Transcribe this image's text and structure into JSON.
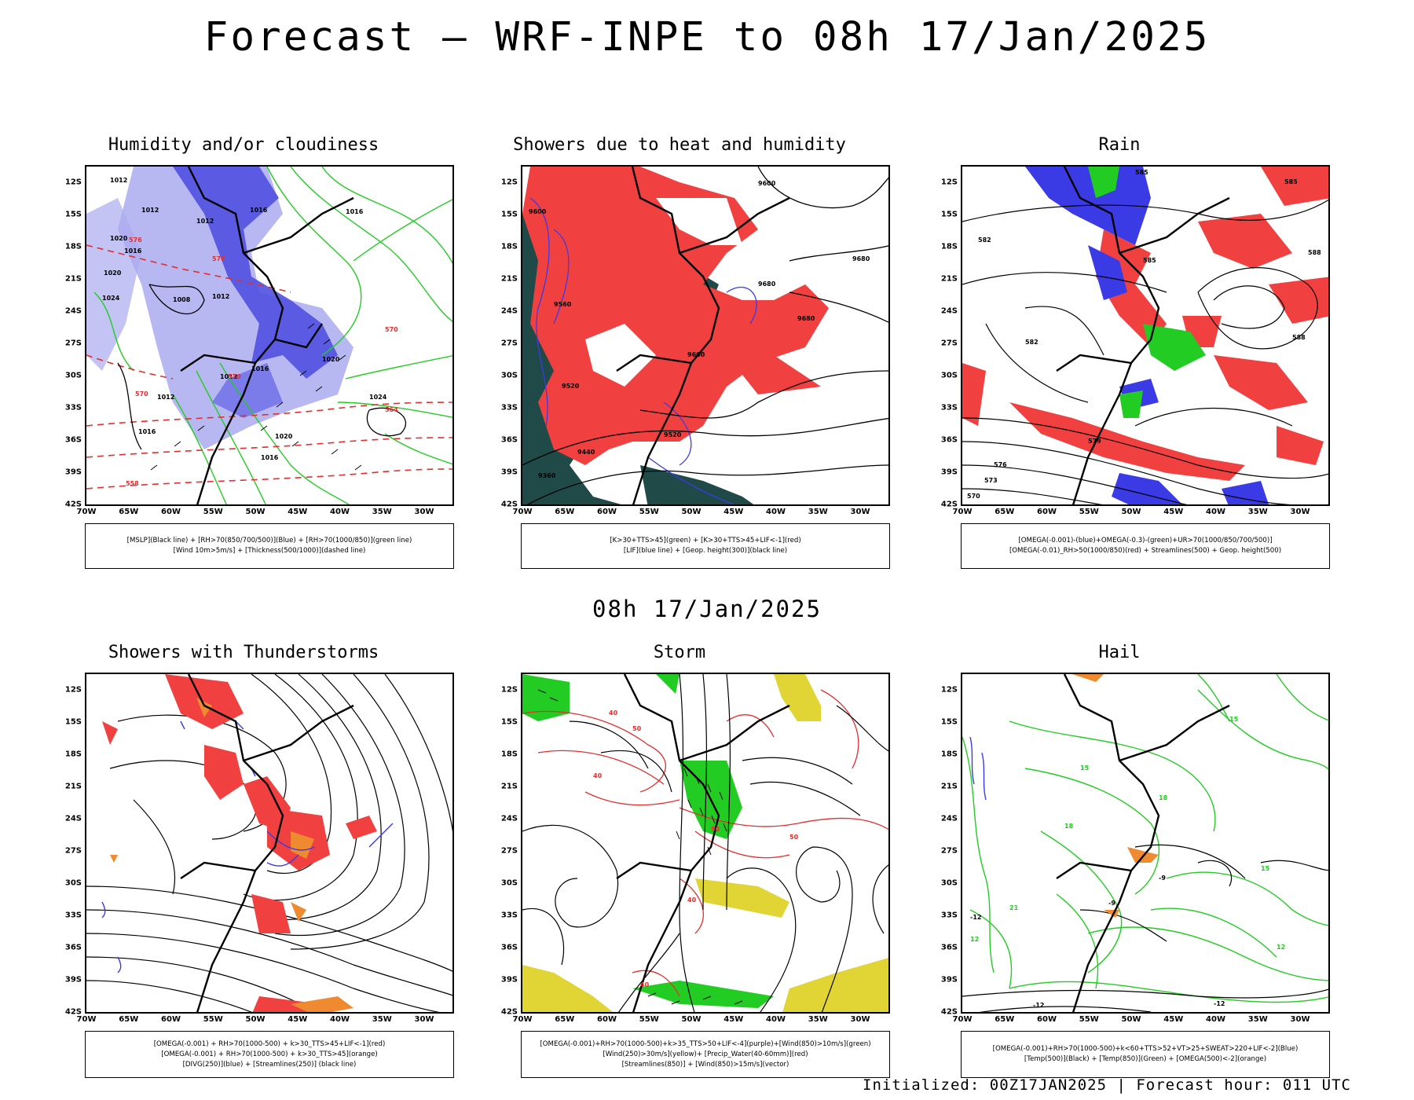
{
  "title": "Forecast — WRF-INPE to 08h 17/Jan/2025",
  "mid_title": "08h 17/Jan/2025",
  "footer": "Initialized: 00Z17JAN2025 | Forecast hour: 011 UTC",
  "lat_labels": [
    "12S",
    "15S",
    "18S",
    "21S",
    "24S",
    "27S",
    "30S",
    "33S",
    "36S",
    "39S",
    "42S"
  ],
  "lon_labels": [
    "70W",
    "65W",
    "60W",
    "55W",
    "50W",
    "45W",
    "40W",
    "35W",
    "30W"
  ],
  "colors": {
    "blue": "#3b3be6",
    "lightblue": "#aaaaf0",
    "green": "#22cc22",
    "red": "#f04040",
    "darkteal": "#1f4a48",
    "orange": "#ef8a30",
    "yellow": "#e0d535",
    "purple": "#9933cc"
  },
  "panels": [
    {
      "title": "Humidity and/or cloudiness",
      "legend": [
        "[MSLP](Black line) + [RH>70(850/700/500)](Blue) + [RH>70(1000/850)](green line)",
        "[Wind 10m>5m/s] + [Thickness(500/1000)](dashed line)"
      ],
      "contour_labels": [
        "1012",
        "1012",
        "1012",
        "1016",
        "1016",
        "1020",
        "1016",
        "1020",
        "1024",
        "1008",
        "1012",
        "1020",
        "1016",
        "1012",
        "1012",
        "1016",
        "1024",
        "1016",
        "1020",
        "576",
        "570",
        "564",
        "558",
        "570",
        "570",
        "576"
      ],
      "icon": "humidity-map"
    },
    {
      "title": "Showers due to heat and humidity",
      "legend": [
        "[K>30+TTS>45](green) + [K>30+TTS>45+LIF<-1](red)",
        "[LIF](blue line) + [Geop. height(300)](black line)"
      ],
      "contour_labels": [
        "9600",
        "9600",
        "9680",
        "9680",
        "9680",
        "9600",
        "9560",
        "9520",
        "9520",
        "9440",
        "9360"
      ],
      "icon": "showers-map"
    },
    {
      "title": "Rain",
      "legend": [
        "[OMEGA(-0.001)-(blue)+OMEGA(-0.3)-(green)+UR>70(1000/850/700/500)]",
        "[OMEGA(-0.01)_RH>50(1000/850)(red) + Streamlines(500) + Geop. height(500)"
      ],
      "contour_labels": [
        "585",
        "582",
        "585",
        "588",
        "588",
        "582",
        "579",
        "576",
        "573",
        "570",
        "585"
      ],
      "icon": "rain-map"
    },
    {
      "title": "Showers with Thunderstorms",
      "legend": [
        "[OMEGA(-0.001) + RH>70(1000-500) + k>30_TTS>45+LIF<-1](red)",
        "[OMEGA(-0.001) + RH>70(1000-500) + k>30_TTS>45](orange)",
        "[DIVG(250)](blue) + [Streamlines(250)] (black line)"
      ],
      "contour_labels": [],
      "icon": "thunderstorms-map"
    },
    {
      "title": "Storm",
      "legend": [
        "[OMEGA(-0.001)+RH>70(1000-500)+k>35_TTS>50+LIF<-4](purple)+[Wind(850)>10m/s](green)",
        "[Wind(250)>30m/s](yellow)+ [Precip_Water(40-60mm)](red)",
        "[Streamlines(850)] + [Wind(850)>15m/s](vector)"
      ],
      "contour_labels": [
        "40",
        "50",
        "40",
        "50",
        "40",
        "50",
        "40"
      ],
      "icon": "storm-map"
    },
    {
      "title": "Hail",
      "legend": [
        "[OMEGA(-0.001)+RH>70(1000-500)+k<60+TTS>52+VT>25+SWEAT>220+LIF<-2](Blue)",
        "[Temp(500)](Black) + [Temp(850)](Green) + [OMEGA(500)<-2](orange)"
      ],
      "contour_labels": [
        "-9",
        "-9",
        "-12",
        "-12",
        "-12",
        "15",
        "18",
        "18",
        "21",
        "15",
        "12",
        "15",
        "12"
      ],
      "icon": "hail-map"
    }
  ]
}
